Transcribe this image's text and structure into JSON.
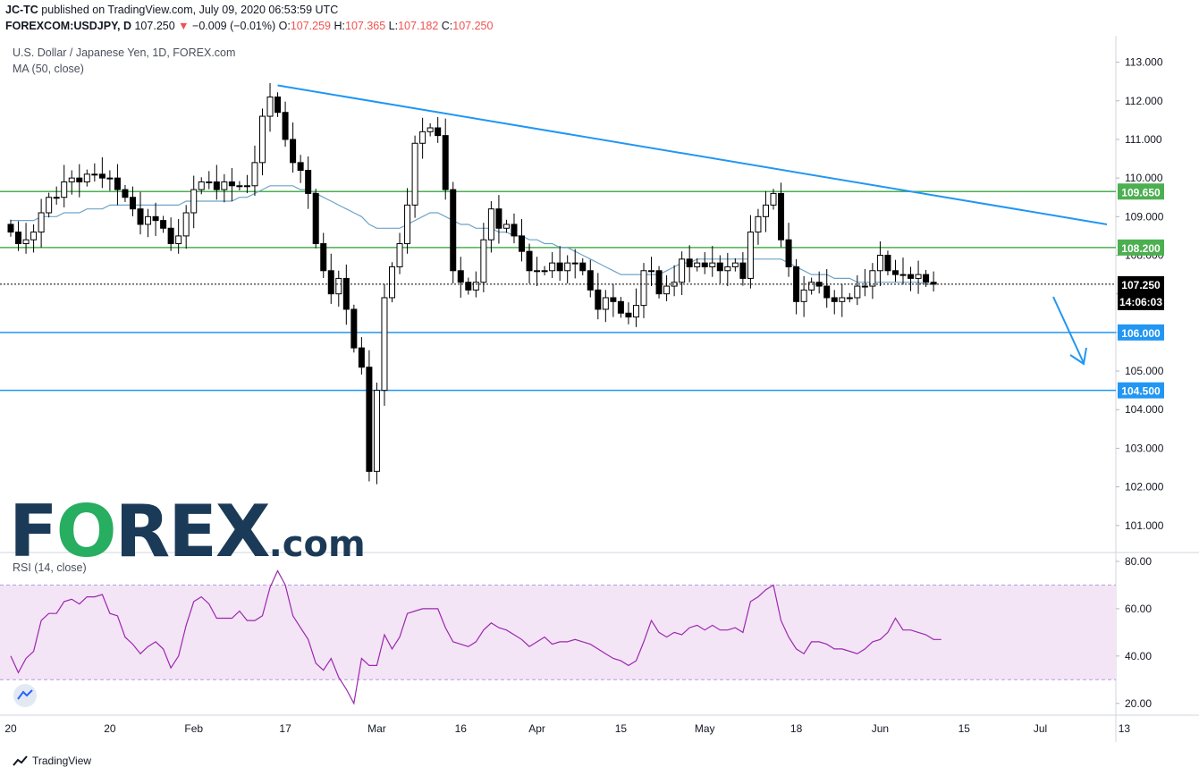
{
  "header": {
    "publisher": "JC-TC",
    "published_line": "published on TradingView.com, July 09, 2020 06:53:59 UTC",
    "symbol": "FOREXCOM:USDJPY, D",
    "last_price": "107.250",
    "change_arrow": "▼",
    "change": "−0.009 (−0.01%)",
    "o_label": "O:",
    "o_value": "107.259",
    "h_label": "H:",
    "h_value": "107.365",
    "l_label": "L:",
    "l_value": "107.182",
    "c_label": "C:",
    "c_value": "107.250"
  },
  "legend": {
    "title": "U.S. Dollar / Japanese Yen, 1D, FOREX.com",
    "ma": "MA (50, close)",
    "rsi": "RSI (14, close)"
  },
  "logo": {
    "f": "F",
    "o": "O",
    "rex": "REX",
    "dotcom": ".com"
  },
  "branding": "TradingView",
  "colors": {
    "up": "#ffffff",
    "down": "#000000",
    "ma": "#6ea3c7",
    "trend": "#2196f3",
    "green_levels": "#4caf50",
    "blue_levels": "#2196f3",
    "rsi": "#9c27b0",
    "rsi_band": "#f3e5f5"
  },
  "chart_data": [
    {
      "type": "candlestick",
      "title": "U.S. Dollar / Japanese Yen, 1D, FOREX.com",
      "y_range": [
        100.3,
        113.5
      ],
      "y_ticks": [
        "101.000",
        "102.000",
        "103.000",
        "104.000",
        "105.000",
        "106.000",
        "107.000",
        "108.000",
        "109.000",
        "110.000",
        "111.000",
        "112.000",
        "113.000"
      ],
      "x_ticks": [
        "20",
        "20",
        "Feb",
        "17",
        "Mar",
        "16",
        "Apr",
        "15",
        "May",
        "18",
        "Jun",
        "15",
        "Jul",
        "13"
      ],
      "closes": [
        108.6,
        108.3,
        108.4,
        108.6,
        109.1,
        109.5,
        109.5,
        109.9,
        110.0,
        109.9,
        110.1,
        110.1,
        110.0,
        110.0,
        109.7,
        109.5,
        109.2,
        108.8,
        109.0,
        108.9,
        108.7,
        108.3,
        108.5,
        109.1,
        109.7,
        109.9,
        109.9,
        109.7,
        109.9,
        109.8,
        109.8,
        109.8,
        110.4,
        111.6,
        112.1,
        111.7,
        111.0,
        110.4,
        110.2,
        109.6,
        108.3,
        107.6,
        107.0,
        107.4,
        106.6,
        105.6,
        105.1,
        102.4,
        104.5,
        106.9,
        107.7,
        108.3,
        109.3,
        110.9,
        111.2,
        111.3,
        111.1,
        109.7,
        107.6,
        107.3,
        107.1,
        107.3,
        108.4,
        109.2,
        108.7,
        108.8,
        108.5,
        108.1,
        107.6,
        107.6,
        107.6,
        107.8,
        107.6,
        107.8,
        107.8,
        107.6,
        107.1,
        106.6,
        106.9,
        106.8,
        106.5,
        106.4,
        106.7,
        107.6,
        107.6,
        107.0,
        107.2,
        107.3,
        107.9,
        107.7,
        107.8,
        107.7,
        107.8,
        107.6,
        107.7,
        107.8,
        107.4,
        108.6,
        109.0,
        109.3,
        109.6,
        108.4,
        107.7,
        106.8,
        107.1,
        107.3,
        107.2,
        106.9,
        106.8,
        106.9,
        106.9,
        107.2,
        107.2,
        107.6,
        108.0,
        107.6,
        107.5,
        107.5,
        107.4,
        107.5,
        107.3,
        107.25
      ],
      "ma_50": [
        108.9,
        108.9,
        108.9,
        108.9,
        109.0,
        109.0,
        109.0,
        109.1,
        109.1,
        109.1,
        109.2,
        109.2,
        109.2,
        109.3,
        109.3,
        109.3,
        109.3,
        109.3,
        109.3,
        109.3,
        109.3,
        109.3,
        109.3,
        109.4,
        109.4,
        109.4,
        109.4,
        109.4,
        109.4,
        109.4,
        109.5,
        109.5,
        109.6,
        109.7,
        109.8,
        109.8,
        109.8,
        109.8,
        109.7,
        109.7,
        109.6,
        109.5,
        109.4,
        109.3,
        109.2,
        109.1,
        109.0,
        108.8,
        108.7,
        108.7,
        108.7,
        108.7,
        108.8,
        108.9,
        109.0,
        109.1,
        109.1,
        109.0,
        108.9,
        108.8,
        108.8,
        108.7,
        108.7,
        108.7,
        108.6,
        108.6,
        108.5,
        108.5,
        108.4,
        108.4,
        108.3,
        108.3,
        108.2,
        108.2,
        108.1,
        108.0,
        107.9,
        107.8,
        107.7,
        107.6,
        107.5,
        107.5,
        107.5,
        107.5,
        107.5,
        107.5,
        107.6,
        107.7,
        107.8,
        107.8,
        107.9,
        107.9,
        107.9,
        107.9,
        107.9,
        107.9,
        107.9,
        107.9,
        107.9,
        107.9,
        107.9,
        107.9,
        107.8,
        107.7,
        107.6,
        107.5,
        107.5,
        107.5,
        107.4,
        107.4,
        107.4,
        107.3,
        107.3,
        107.3,
        107.3,
        107.3,
        107.3,
        107.3,
        107.3,
        107.3,
        107.25,
        107.25
      ],
      "horizontal_levels": [
        {
          "value": 109.65,
          "label": "109.650",
          "color": "green"
        },
        {
          "value": 108.2,
          "label": "108.200",
          "color": "green"
        },
        {
          "value": 106.0,
          "label": "106.000",
          "color": "blue"
        },
        {
          "value": 104.5,
          "label": "104.500",
          "color": "blue"
        }
      ],
      "trendline": {
        "from": 112.4,
        "to": 108.8
      },
      "last_price_label": "107.250",
      "countdown": "14:06:03"
    },
    {
      "type": "line",
      "title": "RSI (14, close)",
      "y_range": [
        15,
        83
      ],
      "y_ticks": [
        "20.00",
        "40.00",
        "60.00",
        "80.00"
      ],
      "band": [
        30,
        70
      ],
      "values": [
        40,
        33,
        39,
        42,
        55,
        58,
        58,
        63,
        64,
        62,
        65,
        65,
        66,
        58,
        57,
        48,
        45,
        41,
        44,
        46,
        43,
        35,
        40,
        53,
        63,
        65,
        62,
        56,
        56,
        56,
        59,
        55,
        55,
        57,
        69,
        76,
        70,
        57,
        52,
        47,
        37,
        34,
        39,
        31,
        26,
        20,
        39,
        36,
        36,
        49,
        43,
        48,
        58,
        59,
        60,
        60,
        60,
        52,
        46,
        45,
        44,
        46,
        51,
        54,
        52,
        51,
        49,
        47,
        44,
        46,
        48,
        45,
        46,
        46,
        47,
        46,
        45,
        43,
        41,
        39,
        38,
        36,
        38,
        46,
        55,
        50,
        48,
        50,
        49,
        52,
        53,
        51,
        53,
        51,
        51,
        52,
        50,
        63,
        65,
        68,
        70,
        55,
        48,
        43,
        41,
        46,
        46,
        45,
        43,
        43,
        42,
        41,
        43,
        46,
        47,
        50,
        56,
        51,
        51,
        50,
        49,
        47,
        47
      ]
    }
  ]
}
